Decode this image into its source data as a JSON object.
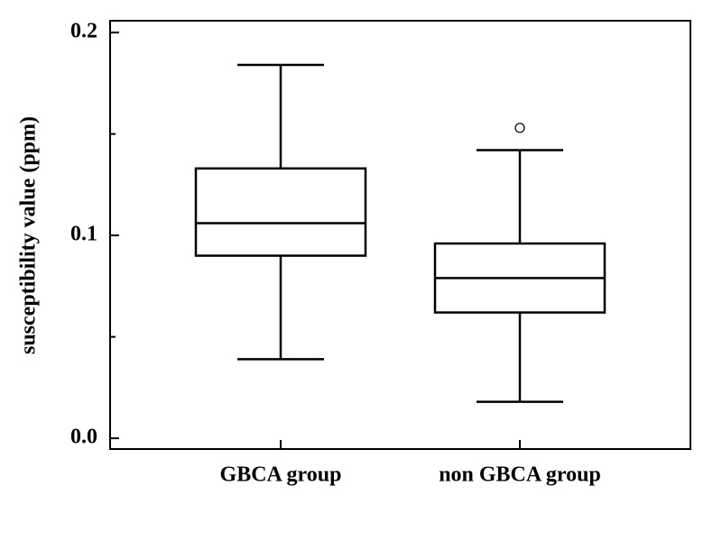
{
  "chart_data": {
    "type": "box",
    "y_label": "susceptibility value (ppm)",
    "categories": [
      "GBCA group",
      "non GBCA group"
    ],
    "whisker_low": [
      0.039,
      0.018
    ],
    "q1": [
      0.09,
      0.062
    ],
    "median": [
      0.106,
      0.079
    ],
    "q3": [
      0.133,
      0.096
    ],
    "whisker_high": [
      0.184,
      0.142
    ],
    "outliers": [
      [],
      [
        0.153
      ]
    ],
    "ylim": [
      -0.0053,
      0.2058
    ],
    "yticks": [
      {
        "value": 0,
        "label": "0.0"
      },
      0.1,
      0.2
    ],
    "minor_yticks": [
      0.05,
      0.15
    ],
    "color": "#000000"
  }
}
